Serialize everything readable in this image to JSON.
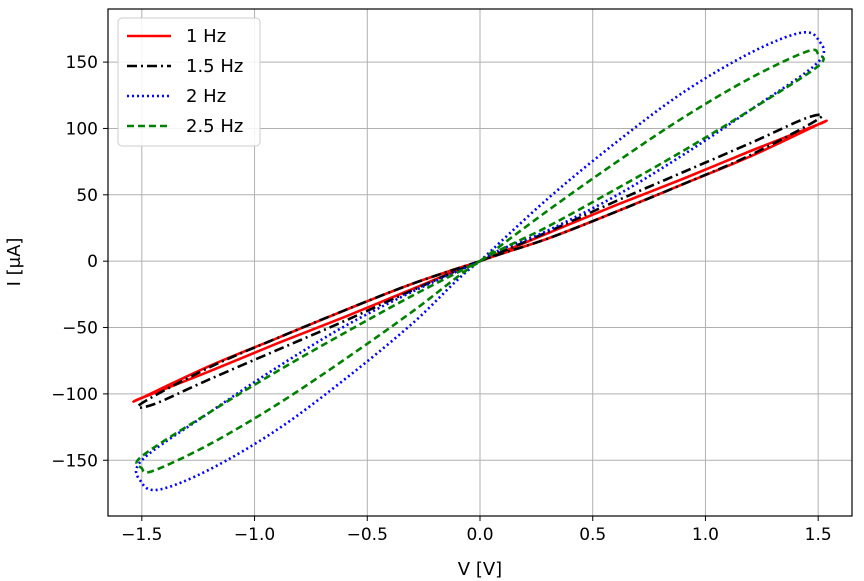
{
  "chart_data": {
    "type": "line",
    "title": "",
    "xlabel": "V [V]",
    "ylabel": "I [μA]",
    "xlim": [
      -1.65,
      1.65
    ],
    "ylim": [
      -192,
      190
    ],
    "x_ticks": [
      -1.5,
      -1.0,
      -0.5,
      0.0,
      0.5,
      1.0,
      1.5
    ],
    "x_tick_labels": [
      "−1.5",
      "−1.0",
      "−0.5",
      "0.0",
      "0.5",
      "1.0",
      "1.5"
    ],
    "y_ticks": [
      -150,
      -100,
      -50,
      0,
      50,
      100,
      150
    ],
    "y_tick_labels": [
      "−150",
      "−100",
      "−50",
      "0",
      "50",
      "100",
      "150"
    ],
    "grid": true,
    "legend_position": "top-left",
    "series": [
      {
        "name": "1 Hz",
        "color": "#ff0000",
        "dash": "solid",
        "x": [
          0.0,
          0.3,
          0.6,
          0.9,
          1.2,
          1.5,
          1.5,
          1.2,
          0.9,
          0.6,
          0.3,
          0.0,
          -0.3,
          -0.6,
          -0.9,
          -1.2,
          -1.5,
          -1.5,
          -1.2,
          -0.9,
          -0.6,
          -0.3,
          0.0
        ],
        "y": [
          0,
          21,
          42,
          62,
          83,
          103,
          103,
          79,
          58,
          37,
          17,
          0,
          -21,
          -42,
          -62,
          -83,
          -103,
          -103,
          -79,
          -58,
          -37,
          -17,
          0
        ]
      },
      {
        "name": "1.5 Hz",
        "color": "#000000",
        "dash": "dashdot",
        "x": [
          0.0,
          0.3,
          0.6,
          0.9,
          1.2,
          1.45,
          1.5,
          1.2,
          0.9,
          0.6,
          0.3,
          0.0,
          -0.3,
          -0.6,
          -0.9,
          -1.2,
          -1.45,
          -1.5,
          -1.2,
          -0.9,
          -0.6,
          -0.3,
          0.0
        ],
        "y": [
          0,
          22,
          45,
          67,
          89,
          108,
          107,
          80,
          58,
          37,
          17,
          0,
          -22,
          -45,
          -67,
          -89,
          -108,
          -107,
          -80,
          -58,
          -37,
          -17,
          0
        ]
      },
      {
        "name": "2 Hz",
        "color": "#0000ff",
        "dash": "dotted",
        "x": [
          0.0,
          0.3,
          0.6,
          0.9,
          1.2,
          1.42,
          1.5,
          1.5,
          1.2,
          0.9,
          0.6,
          0.3,
          0.0,
          -0.3,
          -0.6,
          -0.9,
          -1.2,
          -1.42,
          -1.5,
          -1.5,
          -1.2,
          -0.9,
          -0.6,
          -0.3,
          0.0
        ],
        "y": [
          0,
          47,
          89,
          127,
          157,
          172,
          167,
          150,
          114,
          80,
          49,
          23,
          0,
          -47,
          -89,
          -127,
          -157,
          -172,
          -167,
          -150,
          -114,
          -80,
          -49,
          -23,
          0
        ]
      },
      {
        "name": "2.5 Hz",
        "color": "#008000",
        "dash": "dashed",
        "x": [
          0.0,
          0.3,
          0.6,
          0.9,
          1.2,
          1.45,
          1.5,
          1.5,
          1.2,
          0.9,
          0.6,
          0.3,
          0.0,
          -0.3,
          -0.6,
          -0.9,
          -1.2,
          -1.45,
          -1.5,
          -1.5,
          -1.2,
          -0.9,
          -0.6,
          -0.3,
          0.0
        ],
        "y": [
          0,
          38,
          74,
          108,
          138,
          158,
          156,
          147,
          114,
          83,
          54,
          26,
          0,
          -38,
          -74,
          -108,
          -138,
          -158,
          -156,
          -147,
          -114,
          -83,
          -54,
          -26,
          0
        ]
      }
    ]
  }
}
